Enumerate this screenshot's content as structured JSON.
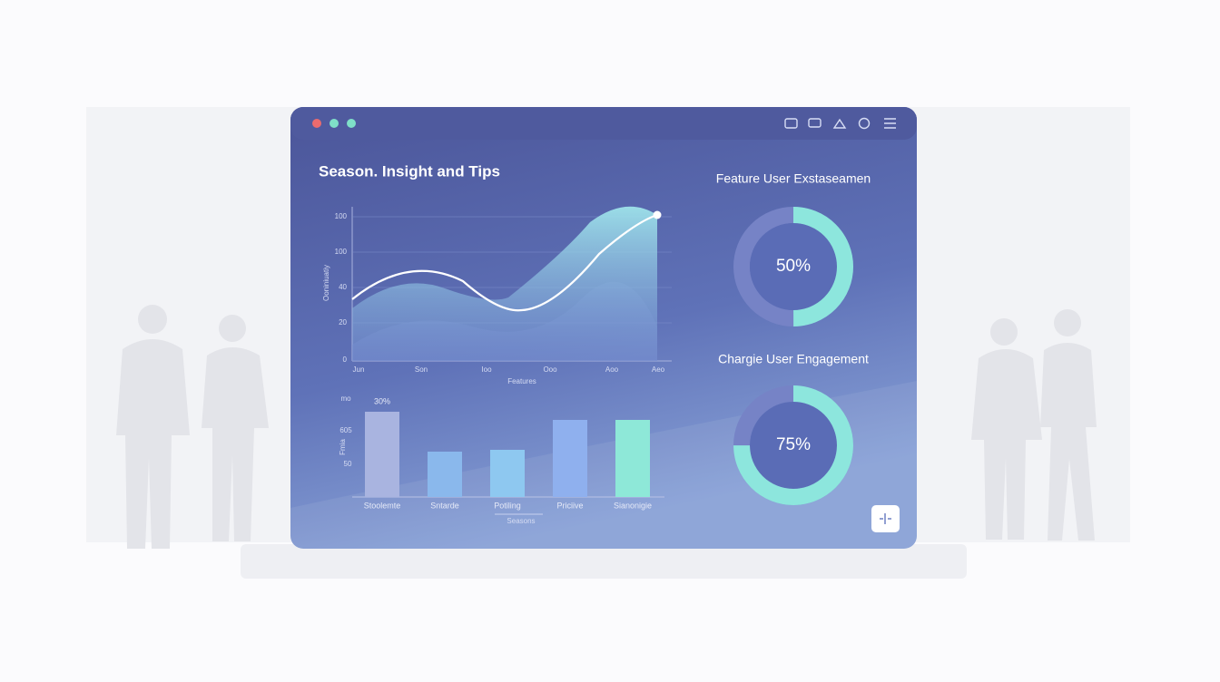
{
  "window": {
    "title": "Season. Insight and Tips",
    "line_chart": {
      "y_label": "Ooniniuatiy",
      "y_ticks": [
        "100",
        "100",
        "40",
        "20",
        "0"
      ],
      "x_ticks": [
        "Jun",
        "Son",
        "Ioo",
        "Ooo",
        "Aoo",
        "Aeo"
      ],
      "x_label": "Features"
    },
    "bar_chart": {
      "y_ticks": [
        "mo",
        "605",
        "50"
      ],
      "y_label": "Fmia",
      "annotation": "30%",
      "categories": [
        "Stoolemte",
        "Sntarde",
        "Potiling",
        "Priciive",
        "Sianonigie"
      ],
      "x_label": "Seasons"
    },
    "donuts": [
      {
        "title": "Feature User Exstaseamen",
        "value": 50,
        "value_label": "50%"
      },
      {
        "title": "Chargie User Engagement",
        "value": 75,
        "value_label": "75%"
      }
    ]
  }
}
